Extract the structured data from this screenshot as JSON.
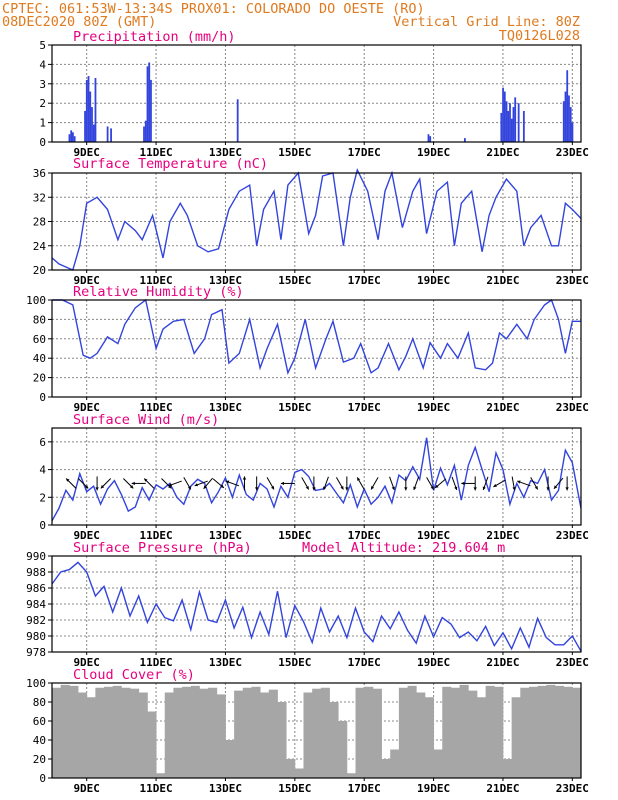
{
  "header": {
    "left_line1": "CPTEC:  061:53W-13:34S  PROX01: COLORADO DO OESTE (RO)",
    "left_line2": "08DEC2020 80Z (GMT)",
    "right_line2": "Vertical Grid Line: 80Z",
    "right_line3": "TQ0126L028"
  },
  "colors": {
    "header": "#e07a1f",
    "title": "#e6007e",
    "line": "#3344dd",
    "cloud": "#a6a6a6",
    "grid": "#888888"
  },
  "time_axis": {
    "start_day": 8.0,
    "end_day": 23.25,
    "tick_labels": [
      "9DEC",
      "11DEC",
      "13DEC",
      "15DEC",
      "17DEC",
      "19DEC",
      "21DEC",
      "23DEC"
    ]
  },
  "chart_data": [
    {
      "type": "bar",
      "title": "Precipitation (mm/h)",
      "ylim": [
        0,
        5
      ],
      "yticks": [
        "0",
        "1",
        "2",
        "3",
        "4",
        "5"
      ],
      "x_unit": "day of December",
      "x": [
        8.5,
        8.55,
        8.6,
        8.65,
        8.95,
        9.0,
        9.05,
        9.1,
        9.15,
        9.2,
        9.25,
        9.6,
        9.7,
        10.65,
        10.7,
        10.75,
        10.8,
        10.85,
        13.35,
        18.85,
        18.9,
        19.9,
        20.95,
        21.0,
        21.05,
        21.1,
        21.15,
        21.2,
        21.25,
        21.3,
        21.35,
        21.45,
        21.6,
        22.75,
        22.8,
        22.85,
        22.9,
        22.95,
        23.0
      ],
      "values": [
        0.4,
        0.6,
        0.5,
        0.3,
        1.6,
        3.2,
        3.4,
        2.6,
        1.8,
        0.9,
        3.3,
        0.8,
        0.7,
        0.8,
        1.1,
        3.9,
        4.1,
        3.2,
        2.2,
        0.4,
        0.3,
        0.2,
        1.5,
        2.8,
        2.6,
        2.1,
        1.6,
        2.0,
        1.2,
        1.8,
        2.3,
        2.0,
        1.6,
        2.1,
        2.6,
        3.7,
        2.4,
        1.8,
        1.0
      ]
    },
    {
      "type": "line",
      "title": "Surface Temperature (nC)",
      "ylim": [
        20,
        36
      ],
      "yticks": [
        "20",
        "24",
        "28",
        "32",
        "36"
      ],
      "x_unit": "day of December",
      "x": [
        8.0,
        8.2,
        8.4,
        8.6,
        8.8,
        9.0,
        9.3,
        9.6,
        9.9,
        10.1,
        10.4,
        10.6,
        10.9,
        11.2,
        11.4,
        11.7,
        11.9,
        12.2,
        12.5,
        12.8,
        13.1,
        13.4,
        13.7,
        13.9,
        14.1,
        14.4,
        14.6,
        14.8,
        15.1,
        15.4,
        15.6,
        15.8,
        16.1,
        16.4,
        16.6,
        16.8,
        17.1,
        17.4,
        17.6,
        17.8,
        18.1,
        18.4,
        18.6,
        18.8,
        19.1,
        19.4,
        19.6,
        19.8,
        20.1,
        20.4,
        20.6,
        20.8,
        21.1,
        21.4,
        21.6,
        21.8,
        22.1,
        22.4,
        22.6,
        22.8,
        23.0,
        23.25
      ],
      "values": [
        22,
        21,
        20.5,
        20,
        24,
        31,
        32,
        30,
        25,
        28,
        26.5,
        25,
        29,
        22,
        28,
        31,
        29,
        24,
        23,
        23.5,
        30,
        33,
        34,
        24,
        30,
        33,
        25,
        34,
        36,
        26,
        29,
        35.5,
        36,
        24,
        32,
        36.5,
        33,
        25,
        33,
        36,
        27,
        33,
        35,
        26,
        33,
        34.5,
        24,
        31,
        33,
        23,
        29,
        32,
        35,
        33,
        24,
        27,
        29,
        24,
        24,
        31,
        30,
        28.5
      ]
    },
    {
      "type": "line",
      "title": "Relative Humidity (%)",
      "ylim": [
        0,
        100
      ],
      "yticks": [
        "0",
        "20",
        "40",
        "60",
        "80",
        "100"
      ],
      "x_unit": "day of December",
      "x": [
        8.0,
        8.3,
        8.6,
        8.9,
        9.1,
        9.3,
        9.6,
        9.9,
        10.1,
        10.4,
        10.7,
        11.0,
        11.2,
        11.5,
        11.8,
        12.1,
        12.4,
        12.6,
        12.9,
        13.1,
        13.4,
        13.7,
        14.0,
        14.2,
        14.5,
        14.8,
        15.0,
        15.3,
        15.6,
        15.9,
        16.1,
        16.4,
        16.7,
        16.9,
        17.2,
        17.4,
        17.7,
        18.0,
        18.2,
        18.4,
        18.7,
        18.9,
        19.2,
        19.4,
        19.7,
        20.0,
        20.2,
        20.5,
        20.7,
        20.9,
        21.1,
        21.4,
        21.7,
        21.9,
        22.2,
        22.4,
        22.6,
        22.8,
        23.0,
        23.25
      ],
      "values": [
        100,
        100,
        95,
        43,
        40,
        45,
        62,
        55,
        75,
        92,
        100,
        50,
        70,
        78,
        80,
        45,
        60,
        85,
        90,
        35,
        45,
        80,
        30,
        50,
        75,
        25,
        40,
        80,
        30,
        60,
        78,
        36,
        40,
        55,
        25,
        30,
        55,
        28,
        42,
        60,
        30,
        56,
        40,
        55,
        40,
        66,
        30,
        28,
        35,
        66,
        60,
        75,
        60,
        80,
        95,
        100,
        80,
        45,
        78,
        78
      ]
    },
    {
      "type": "line",
      "title": "Surface Wind (m/s)",
      "ylim": [
        0,
        7
      ],
      "yticks": [
        "0",
        "2",
        "4",
        "6"
      ],
      "x_unit": "day of December",
      "x": [
        8.0,
        8.2,
        8.4,
        8.6,
        8.8,
        9.0,
        9.2,
        9.4,
        9.6,
        9.8,
        10.0,
        10.2,
        10.4,
        10.6,
        10.8,
        11.0,
        11.2,
        11.4,
        11.6,
        11.8,
        12.0,
        12.2,
        12.4,
        12.6,
        12.8,
        13.0,
        13.2,
        13.4,
        13.6,
        13.8,
        14.0,
        14.2,
        14.4,
        14.6,
        14.8,
        15.0,
        15.2,
        15.4,
        15.6,
        15.8,
        16.0,
        16.2,
        16.4,
        16.6,
        16.8,
        17.0,
        17.2,
        17.4,
        17.6,
        17.8,
        18.0,
        18.2,
        18.4,
        18.6,
        18.8,
        19.0,
        19.2,
        19.4,
        19.6,
        19.8,
        20.0,
        20.2,
        20.4,
        20.6,
        20.8,
        21.0,
        21.2,
        21.4,
        21.6,
        21.8,
        22.0,
        22.2,
        22.4,
        22.6,
        22.8,
        23.0,
        23.25
      ],
      "values": [
        0.3,
        1.2,
        2.5,
        1.8,
        3.7,
        2.4,
        2.8,
        1.5,
        2.6,
        3.2,
        2.2,
        1.0,
        1.3,
        2.7,
        1.8,
        2.9,
        2.6,
        3.0,
        2.0,
        1.5,
        2.8,
        3.3,
        3.0,
        1.6,
        2.4,
        3.4,
        2.0,
        3.6,
        2.2,
        1.8,
        3.0,
        2.6,
        1.3,
        2.8,
        2.0,
        3.8,
        4.0,
        3.5,
        2.5,
        2.6,
        3.0,
        2.3,
        1.6,
        2.9,
        1.3,
        2.6,
        1.5,
        2.0,
        2.8,
        1.6,
        3.6,
        3.2,
        4.2,
        3.3,
        6.3,
        2.5,
        4.1,
        2.9,
        4.3,
        1.8,
        4.3,
        5.6,
        4.0,
        2.4,
        5.2,
        4.0,
        1.5,
        3.0,
        2.0,
        3.2,
        3.0,
        4.0,
        1.8,
        2.5,
        5.4,
        4.5,
        1.2
      ],
      "arrows_x": [
        8.55,
        8.9,
        9.3,
        9.55,
        10.2,
        10.5,
        10.8,
        11.3,
        11.55,
        11.9,
        12.3,
        12.5,
        12.8,
        13.2,
        13.55,
        13.9,
        14.3,
        14.8,
        15.3,
        15.55,
        15.9,
        16.3,
        16.5,
        16.9,
        17.3,
        17.8,
        18.2,
        18.5,
        18.9,
        19.2,
        19.6,
        20.0,
        20.2,
        20.5,
        20.9,
        21.3,
        21.6,
        21.9,
        22.3,
        22.6,
        22.85
      ],
      "arrows_dir_deg": [
        135,
        315,
        270,
        225,
        315,
        180,
        135,
        315,
        200,
        300,
        200,
        230,
        320,
        160,
        90,
        270,
        300,
        180,
        300,
        270,
        250,
        300,
        270,
        120,
        240,
        290,
        270,
        250,
        300,
        220,
        290,
        180,
        270,
        250,
        210,
        280,
        160,
        300,
        270,
        230,
        270
      ]
    },
    {
      "type": "line",
      "title": "Surface Pressure (hPa)",
      "annotation": "Model Altitude: 219.604 m",
      "ylim": [
        978,
        990
      ],
      "yticks": [
        "978",
        "980",
        "982",
        "984",
        "986",
        "988",
        "990"
      ],
      "x_unit": "day of December",
      "x": [
        8.0,
        8.25,
        8.5,
        8.75,
        9.0,
        9.25,
        9.5,
        9.75,
        10.0,
        10.25,
        10.5,
        10.75,
        11.0,
        11.25,
        11.5,
        11.75,
        12.0,
        12.25,
        12.5,
        12.75,
        13.0,
        13.25,
        13.5,
        13.75,
        14.0,
        14.25,
        14.5,
        14.75,
        15.0,
        15.25,
        15.5,
        15.75,
        16.0,
        16.25,
        16.5,
        16.75,
        17.0,
        17.25,
        17.5,
        17.75,
        18.0,
        18.25,
        18.5,
        18.75,
        19.0,
        19.25,
        19.5,
        19.75,
        20.0,
        20.25,
        20.5,
        20.75,
        21.0,
        21.25,
        21.5,
        21.75,
        22.0,
        22.25,
        22.5,
        22.75,
        23.0,
        23.25
      ],
      "values": [
        986.5,
        988,
        988.3,
        989.2,
        988,
        985,
        986.2,
        983,
        986,
        982.5,
        985,
        981.7,
        984,
        982.3,
        981.9,
        984.5,
        980.8,
        985.5,
        982,
        981.7,
        984.5,
        981,
        983.6,
        979.8,
        983,
        980.2,
        985.6,
        979.8,
        983.8,
        981.8,
        979.2,
        983.5,
        980.5,
        982.5,
        979.8,
        983.5,
        980.5,
        979.3,
        982.5,
        980.9,
        983,
        980.7,
        979.1,
        982.5,
        979.9,
        982.3,
        981.5,
        979.8,
        980.5,
        979.4,
        981.2,
        978.8,
        980.4,
        978.4,
        981,
        978.6,
        982.2,
        979.8,
        978.9,
        978.9,
        980,
        978.1
      ]
    },
    {
      "type": "bar",
      "title": "Cloud Cover (%)",
      "ylim": [
        0,
        100
      ],
      "yticks": [
        "0",
        "20",
        "40",
        "60",
        "80",
        "100"
      ],
      "x_unit": "day of December",
      "x": [
        8.0,
        8.25,
        8.5,
        8.75,
        9.0,
        9.25,
        9.5,
        9.75,
        10.0,
        10.25,
        10.5,
        10.75,
        11.0,
        11.25,
        11.5,
        11.75,
        12.0,
        12.25,
        12.5,
        12.75,
        13.0,
        13.25,
        13.5,
        13.75,
        14.0,
        14.25,
        14.5,
        14.75,
        15.0,
        15.25,
        15.5,
        15.75,
        16.0,
        16.25,
        16.5,
        16.75,
        17.0,
        17.25,
        17.5,
        17.75,
        18.0,
        18.25,
        18.5,
        18.75,
        19.0,
        19.25,
        19.5,
        19.75,
        20.0,
        20.25,
        20.5,
        20.75,
        21.0,
        21.25,
        21.5,
        21.75,
        22.0,
        22.25,
        22.5,
        22.75,
        23.0,
        23.25
      ],
      "values": [
        95,
        98,
        97,
        90,
        85,
        95,
        96,
        97,
        95,
        94,
        90,
        70,
        5,
        90,
        95,
        96,
        97,
        94,
        95,
        88,
        40,
        92,
        95,
        96,
        90,
        93,
        80,
        20,
        10,
        90,
        94,
        95,
        80,
        60,
        5,
        95,
        96,
        94,
        20,
        30,
        95,
        97,
        90,
        85,
        30,
        96,
        95,
        98,
        92,
        85,
        97,
        96,
        20,
        85,
        95,
        96,
        97,
        98,
        97,
        96,
        95,
        96
      ]
    }
  ]
}
